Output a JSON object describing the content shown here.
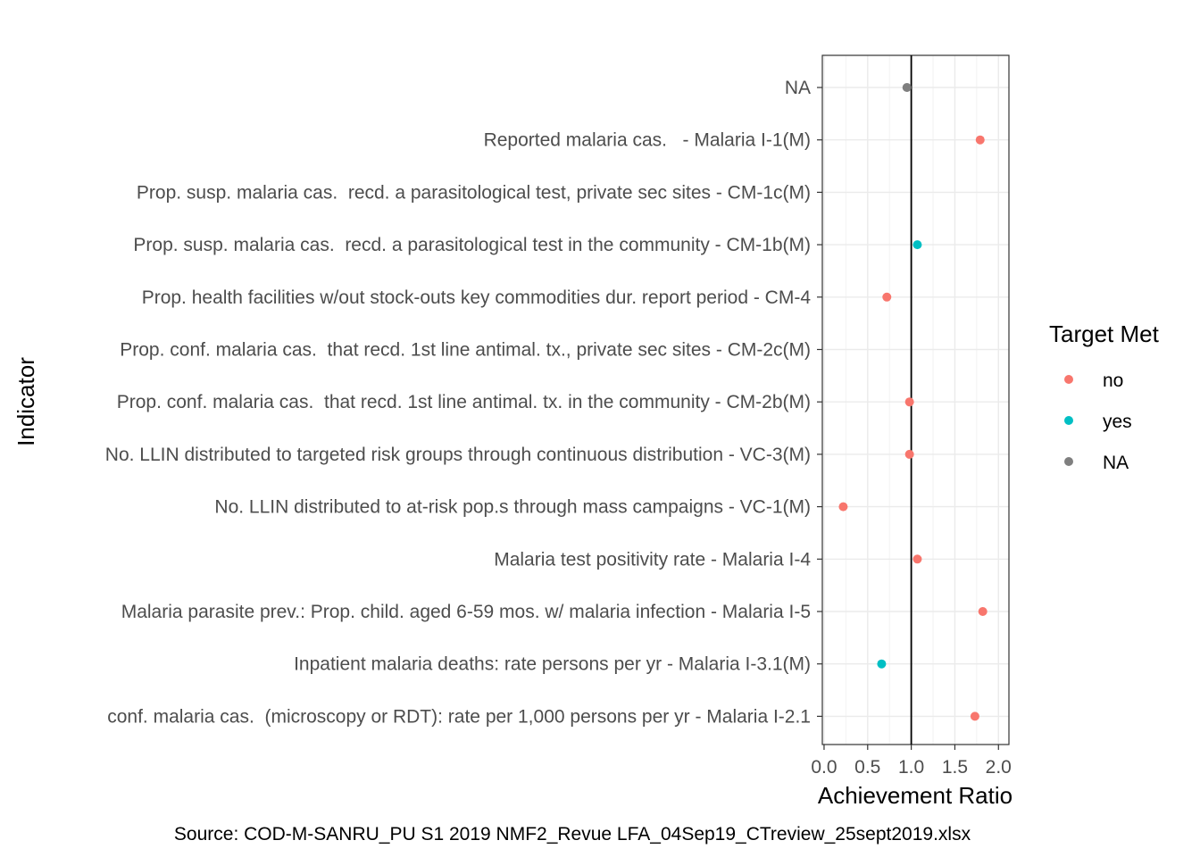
{
  "chart_data": {
    "type": "scatter",
    "xlabel": "Achievement Ratio",
    "ylabel": "Indicator",
    "xlim": [
      -0.02,
      2.12
    ],
    "xticks": [
      "0.0",
      "0.5",
      "1.0",
      "1.5",
      "2.0"
    ],
    "xtick_values": [
      0.0,
      0.5,
      1.0,
      1.5,
      2.0
    ],
    "reference_line_x": 1.0,
    "grid": true,
    "legend": {
      "title": "Target Met",
      "placement": "right",
      "entries": [
        {
          "label": "no",
          "color": "#F8766D"
        },
        {
          "label": "yes",
          "color": "#00BFC4"
        },
        {
          "label": "NA",
          "color": "#7F7F7F"
        }
      ]
    },
    "categories": [
      "NA",
      "Reported malaria cas.   - Malaria I-1(M)",
      "Prop. susp. malaria cas.  recd. a parasitological test, private sec sites - CM-1c(M)",
      "Prop. susp. malaria cas.  recd. a parasitological test in the community - CM-1b(M)",
      "Prop. health facilities w/out stock-outs key commodities dur. report period - CM-4",
      "Prop. conf. malaria cas.  that recd. 1st line antimal. tx., private sec sites - CM-2c(M)",
      "Prop. conf. malaria cas.  that recd. 1st line antimal. tx. in the community - CM-2b(M)",
      "No. LLIN distributed to targeted risk groups through continuous distribution - VC-3(M)",
      "No. LLIN distributed to at-risk pop.s through mass campaigns - VC-1(M)",
      "Malaria test positivity rate - Malaria I-4",
      "Malaria parasite prev.: Prop. child. aged 6-59 mos. w/ malaria infection - Malaria I-5",
      "Inpatient malaria deaths: rate persons per yr - Malaria I-3.1(M)",
      "conf. malaria cas.  (microscopy or RDT): rate per 1,000 persons per yr - Malaria I-2.1"
    ],
    "points": [
      {
        "category": "NA",
        "x": 0.95,
        "target_met": "NA"
      },
      {
        "category": "Reported malaria cas.   - Malaria I-1(M)",
        "x": 1.79,
        "target_met": "no"
      },
      {
        "category": "Prop. susp. malaria cas.  recd. a parasitological test in the community - CM-1b(M)",
        "x": 1.07,
        "target_met": "yes"
      },
      {
        "category": "Prop. health facilities w/out stock-outs key commodities dur. report period - CM-4",
        "x": 0.72,
        "target_met": "no"
      },
      {
        "category": "Prop. conf. malaria cas.  that recd. 1st line antimal. tx. in the community - CM-2b(M)",
        "x": 0.98,
        "target_met": "no"
      },
      {
        "category": "No. LLIN distributed to targeted risk groups through continuous distribution - VC-3(M)",
        "x": 0.98,
        "target_met": "no"
      },
      {
        "category": "No. LLIN distributed to at-risk pop.s through mass campaigns - VC-1(M)",
        "x": 0.22,
        "target_met": "no"
      },
      {
        "category": "Malaria test positivity rate - Malaria I-4",
        "x": 1.07,
        "target_met": "no"
      },
      {
        "category": "Malaria parasite prev.: Prop. child. aged 6-59 mos. w/ malaria infection - Malaria I-5",
        "x": 1.82,
        "target_met": "no"
      },
      {
        "category": "Inpatient malaria deaths: rate persons per yr - Malaria I-3.1(M)",
        "x": 0.66,
        "target_met": "yes"
      },
      {
        "category": "conf. malaria cas.  (microscopy or RDT): rate per 1,000 persons per yr - Malaria I-2.1",
        "x": 1.73,
        "target_met": "no"
      }
    ],
    "caption": "Source: COD-M-SANRU_PU S1 2019 NMF2_Revue LFA_04Sep19_CTreview_25sept2019.xlsx"
  }
}
